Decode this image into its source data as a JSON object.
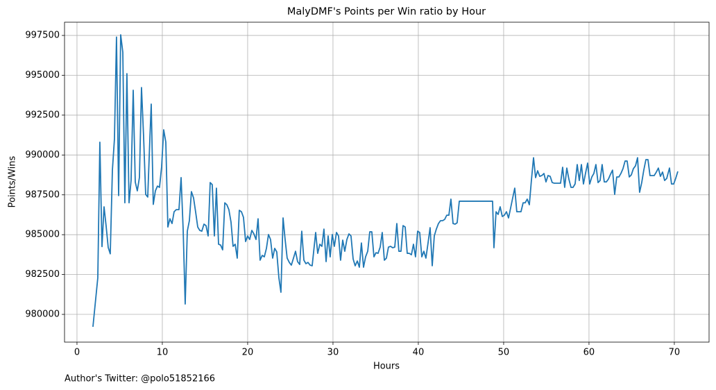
{
  "chart_data": {
    "type": "line",
    "title": "MalyDMF's Points per Win ratio by Hour",
    "xlabel": "Hours",
    "ylabel": "Points/Wins",
    "annotation": "Author's Twitter: @polo51852166",
    "color": "#1f77b4",
    "grid": true,
    "xlim": [
      -1.46,
      74.07
    ],
    "ylim": [
      978260,
      998330
    ],
    "xticks": [
      0,
      10,
      20,
      30,
      40,
      50,
      60,
      70
    ],
    "yticks": [
      980000,
      982500,
      985000,
      987500,
      990000,
      992500,
      995000,
      997500
    ],
    "x": [
      1.87,
      2.44,
      2.68,
      2.93,
      3.17,
      3.41,
      3.66,
      3.9,
      4.15,
      4.39,
      4.63,
      4.88,
      5.12,
      5.37,
      5.61,
      5.85,
      6.1,
      6.34,
      6.59,
      6.83,
      7.07,
      7.32,
      7.56,
      7.8,
      8.05,
      8.29,
      8.54,
      8.7,
      8.94,
      9.19,
      9.43,
      9.67,
      9.92,
      10.16,
      10.41,
      10.65,
      10.89,
      11.14,
      11.38,
      11.63,
      11.95,
      12.2,
      12.44,
      12.68,
      12.93,
      13.17,
      13.41,
      13.66,
      13.9,
      14.15,
      14.39,
      14.63,
      14.88,
      15.12,
      15.37,
      15.61,
      15.85,
      16.1,
      16.34,
      16.59,
      16.83,
      17.07,
      17.32,
      17.56,
      17.8,
      18.05,
      18.29,
      18.54,
      18.78,
      19.02,
      19.27,
      19.51,
      19.76,
      20.0,
      20.24,
      20.49,
      20.73,
      20.98,
      21.22,
      21.46,
      21.71,
      21.95,
      22.2,
      22.44,
      22.68,
      22.93,
      23.17,
      23.41,
      23.66,
      23.9,
      24.15,
      24.39,
      24.63,
      24.88,
      25.12,
      25.37,
      25.61,
      25.85,
      26.1,
      26.34,
      26.59,
      26.83,
      27.07,
      27.32,
      27.56,
      27.97,
      28.21,
      28.46,
      28.7,
      28.94,
      29.19,
      29.43,
      29.67,
      29.92,
      30.16,
      30.41,
      30.65,
      30.89,
      31.14,
      31.38,
      31.63,
      31.87,
      32.11,
      32.36,
      32.6,
      32.85,
      33.09,
      33.33,
      33.58,
      33.82,
      34.07,
      34.31,
      34.55,
      34.8,
      35.04,
      35.28,
      35.53,
      35.77,
      36.02,
      36.26,
      36.5,
      36.75,
      36.99,
      37.24,
      37.48,
      37.72,
      37.97,
      38.21,
      38.46,
      38.7,
      38.94,
      39.19,
      39.43,
      39.67,
      39.92,
      40.16,
      40.41,
      40.65,
      40.89,
      41.14,
      41.38,
      41.63,
      41.87,
      42.11,
      42.36,
      42.6,
      42.85,
      43.09,
      43.33,
      43.58,
      43.82,
      44.07,
      44.31,
      44.55,
      44.8,
      48.7,
      48.86,
      49.11,
      49.35,
      49.59,
      49.84,
      50.08,
      50.33,
      50.57,
      50.81,
      51.06,
      51.3,
      51.54,
      51.79,
      52.03,
      52.28,
      52.52,
      52.76,
      53.01,
      53.25,
      53.5,
      53.74,
      53.98,
      54.23,
      54.47,
      54.72,
      54.96,
      55.2,
      55.45,
      55.69,
      55.93,
      56.18,
      56.42,
      56.67,
      56.91,
      57.15,
      57.4,
      57.64,
      57.89,
      58.13,
      58.37,
      58.62,
      58.86,
      59.11,
      59.35,
      59.59,
      59.84,
      60.08,
      60.33,
      60.57,
      60.81,
      61.06,
      61.3,
      61.54,
      61.79,
      62.03,
      62.28,
      62.52,
      62.76,
      63.01,
      63.25,
      63.5,
      63.74,
      63.98,
      64.23,
      64.47,
      64.72,
      64.96,
      65.2,
      65.45,
      65.69,
      65.93,
      66.18,
      66.42,
      66.67,
      66.91,
      67.15,
      67.4,
      67.64,
      67.89,
      68.13,
      68.37,
      68.62,
      68.86,
      69.11,
      69.43,
      69.67,
      69.92,
      70.16,
      70.41
    ],
    "values": [
      979220,
      982300,
      990800,
      984250,
      986750,
      985570,
      984200,
      983800,
      989050,
      991000,
      997400,
      987450,
      997540,
      996450,
      987000,
      995100,
      987000,
      988400,
      994060,
      988300,
      987750,
      988600,
      994230,
      991230,
      987530,
      987360,
      991000,
      993190,
      986900,
      987750,
      988050,
      987970,
      989270,
      991580,
      990800,
      985480,
      986000,
      985700,
      986440,
      986570,
      986570,
      988580,
      985350,
      980650,
      985220,
      985880,
      987700,
      987310,
      986440,
      985480,
      985270,
      985220,
      985660,
      985570,
      984920,
      988270,
      988140,
      984920,
      987920,
      984400,
      984350,
      984050,
      987000,
      986880,
      986570,
      985790,
      984270,
      984400,
      983530,
      986530,
      986440,
      986090,
      984570,
      984920,
      984700,
      985270,
      985050,
      984700,
      986000,
      983400,
      983700,
      983610,
      984140,
      985010,
      984700,
      983530,
      984140,
      983920,
      982300,
      981390,
      986050,
      984700,
      983530,
      983260,
      983090,
      983530,
      983960,
      983310,
      983130,
      985220,
      983400,
      983180,
      983260,
      983090,
      983050,
      985140,
      983830,
      984400,
      984270,
      985350,
      983310,
      984920,
      983610,
      985010,
      984270,
      985140,
      984920,
      983400,
      984660,
      983960,
      984700,
      985050,
      984920,
      983480,
      983050,
      983350,
      982960,
      984480,
      982960,
      983610,
      983960,
      985180,
      985180,
      983610,
      983870,
      983830,
      984220,
      985140,
      983400,
      983530,
      984220,
      984270,
      984180,
      984220,
      985700,
      983960,
      983960,
      985570,
      985480,
      983830,
      983830,
      983740,
      984400,
      983610,
      985220,
      985140,
      983610,
      983960,
      983530,
      984480,
      985440,
      983050,
      984920,
      985350,
      985700,
      985880,
      985880,
      985960,
      986220,
      986220,
      987230,
      985700,
      985660,
      985750,
      987100,
      987100,
      984180,
      986440,
      986270,
      986750,
      986140,
      986220,
      986440,
      986050,
      986660,
      987310,
      987920,
      986440,
      986440,
      986440,
      987000,
      987000,
      987230,
      986880,
      988400,
      989830,
      988580,
      989010,
      988660,
      988710,
      988840,
      988310,
      988710,
      988660,
      988270,
      988230,
      988230,
      988230,
      988230,
      989230,
      987970,
      989180,
      988490,
      987970,
      987970,
      988180,
      989400,
      988400,
      989400,
      988180,
      988840,
      989490,
      988180,
      988620,
      988840,
      989400,
      988270,
      988400,
      989400,
      988310,
      988310,
      988490,
      988790,
      989050,
      987530,
      988620,
      988620,
      988840,
      989140,
      989620,
      989620,
      988620,
      988750,
      989140,
      989320,
      989830,
      987660,
      988270,
      989050,
      989710,
      989710,
      988710,
      988710,
      988710,
      988930,
      989180,
      988660,
      988930,
      988400,
      988530,
      989180,
      988180,
      988180,
      988530,
      988970
    ]
  }
}
